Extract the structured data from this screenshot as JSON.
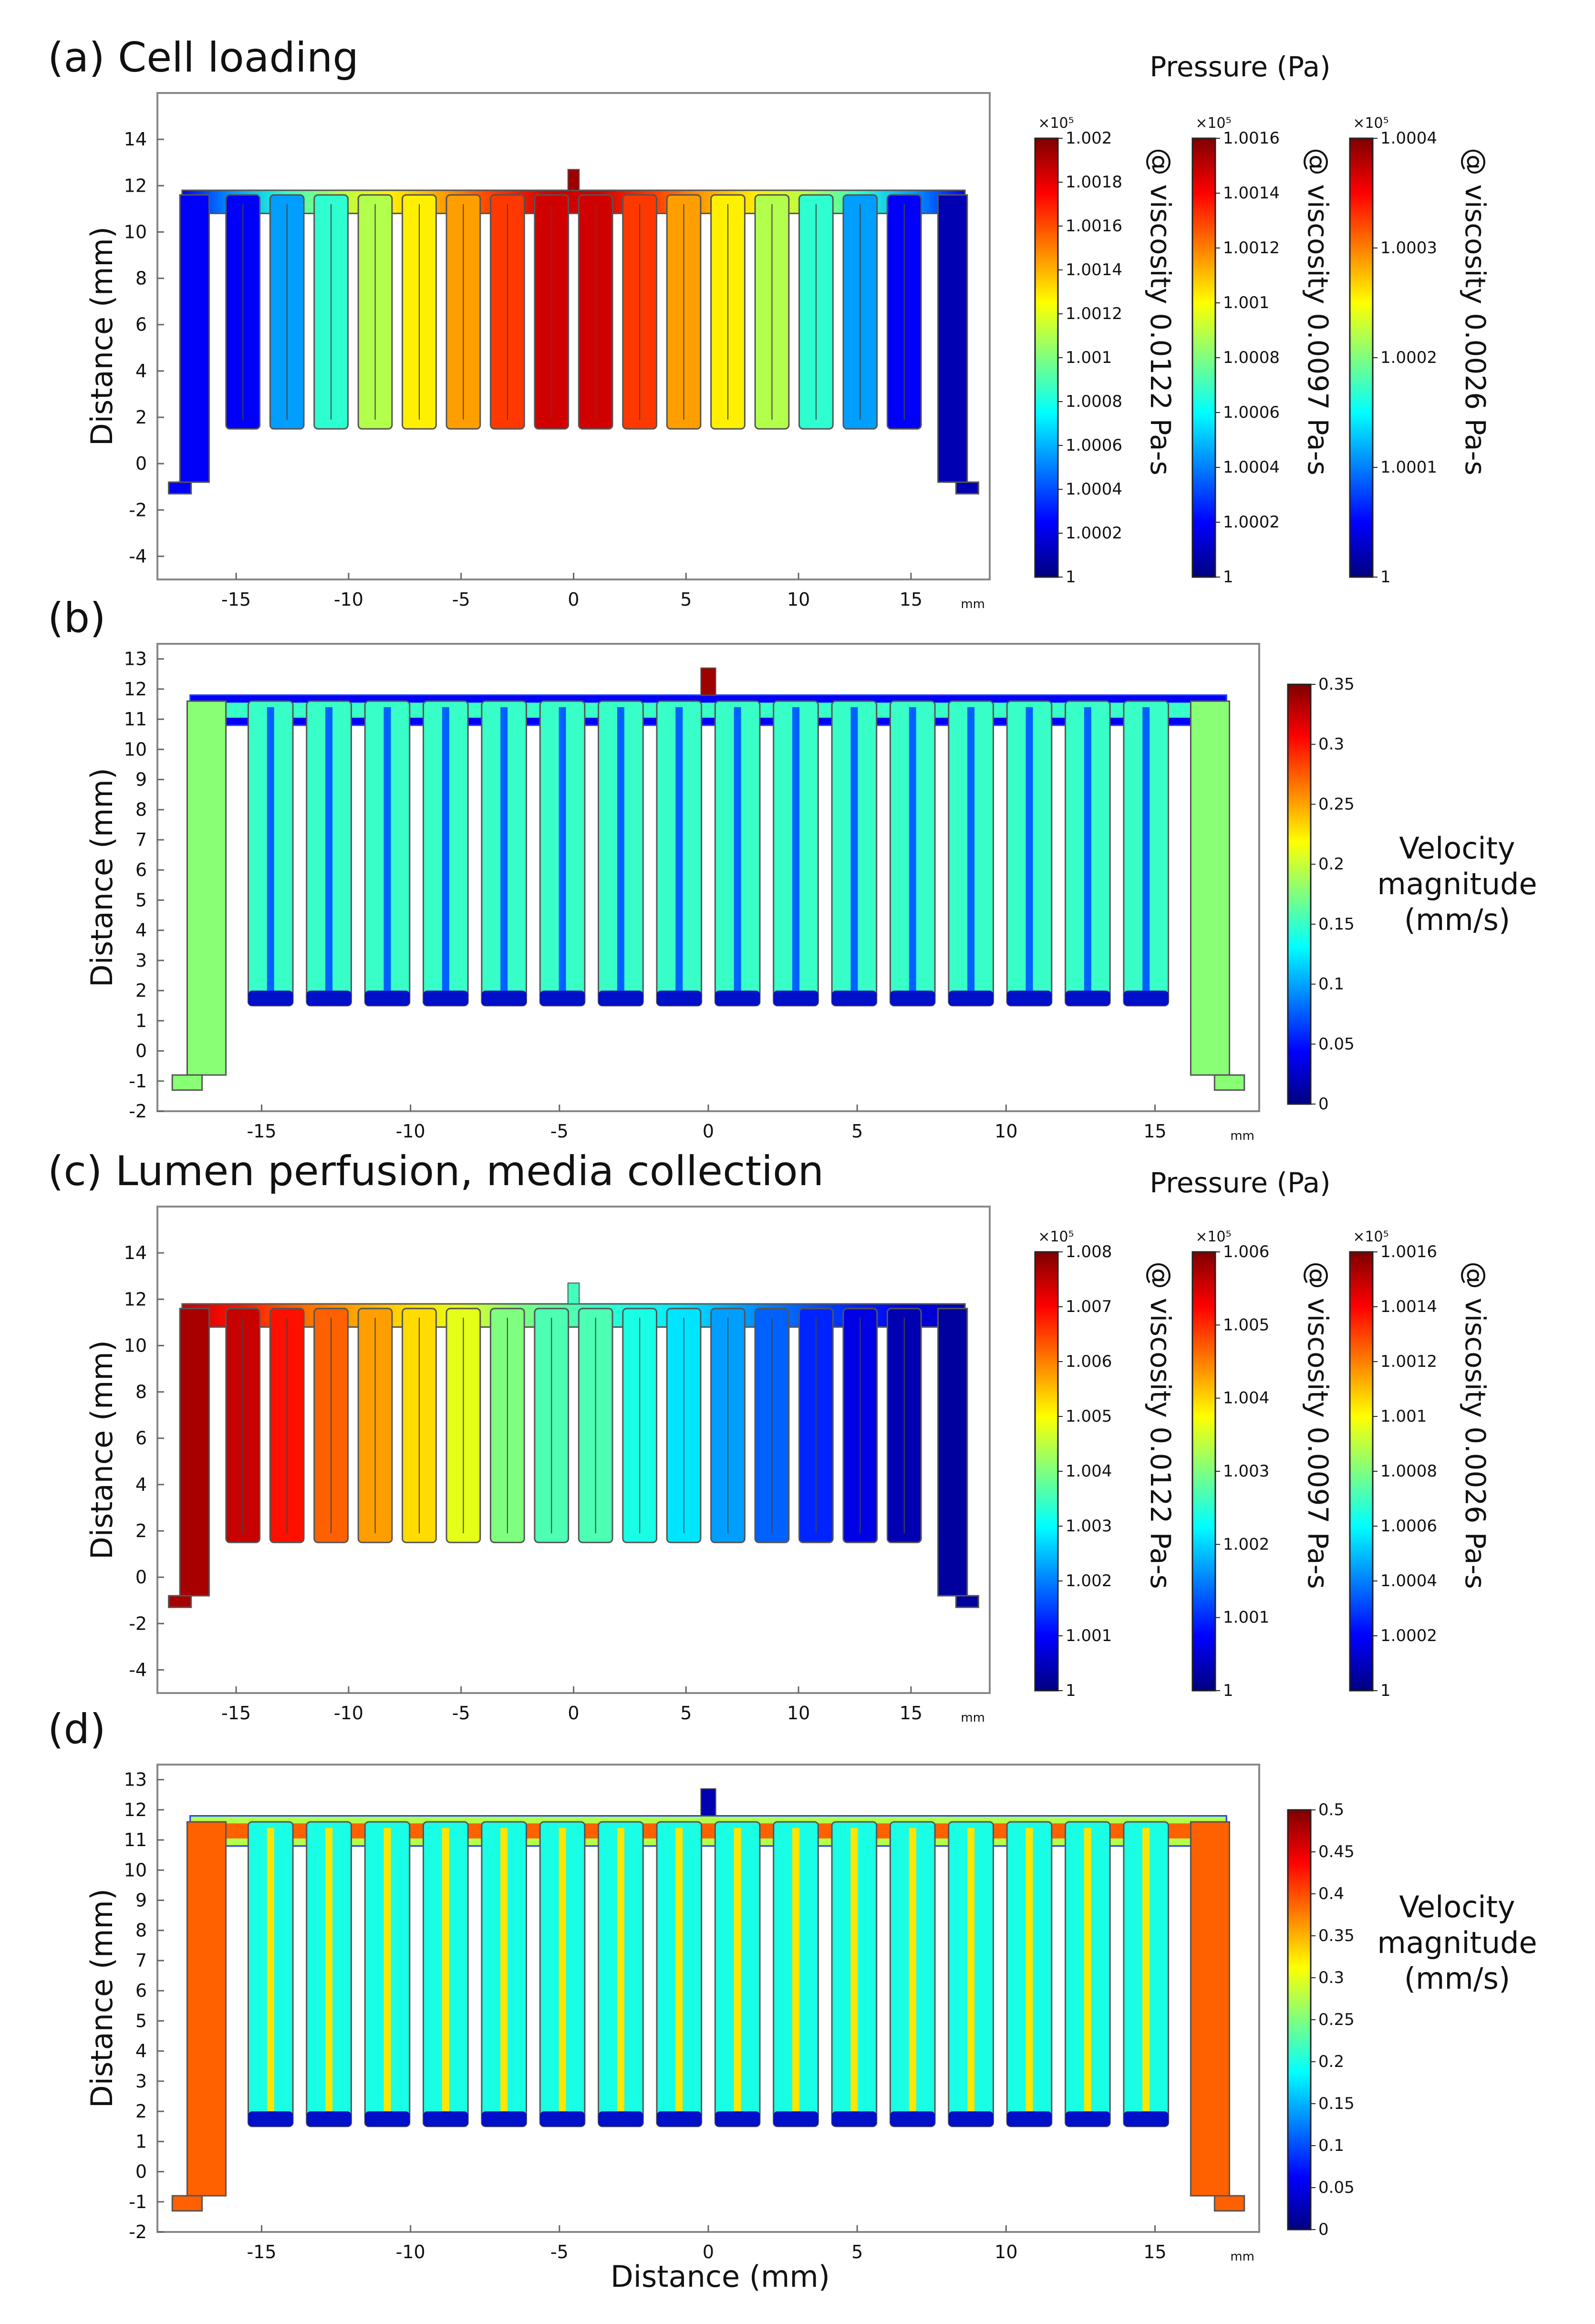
{
  "figure": {
    "xlabel_bottom": "Distance (mm)"
  },
  "palette": {
    "jet": [
      "#00007f",
      "#0000ff",
      "#007fff",
      "#00ffff",
      "#7fff7f",
      "#ffff00",
      "#ff7f00",
      "#ff0000",
      "#7f0000"
    ],
    "frame": "#888888",
    "background": "#ffffff",
    "outline": "#555555"
  },
  "panels": [
    {
      "id": "a",
      "header": "(a) Cell loading",
      "ylabel": "Distance (mm)",
      "x_unit": "mm",
      "x_ticks": [
        "-15",
        "-10",
        "-5",
        "0",
        "5",
        "10",
        "15"
      ],
      "y_ticks": [
        "-4",
        "-2",
        "0",
        "2",
        "4",
        "6",
        "8",
        "10",
        "12",
        "14"
      ],
      "xlim": [
        -18.5,
        18.5
      ],
      "ylim": [
        -5,
        16
      ],
      "field": "pressure",
      "finger_levels": [
        0.12,
        0.28,
        0.42,
        0.55,
        0.64,
        0.72,
        0.82,
        0.92,
        0.92,
        0.82,
        0.72,
        0.64,
        0.55,
        0.42,
        0.28,
        0.12
      ],
      "inlet_level": 0.97,
      "outlet_level": 0.05,
      "colorbar_group_label": "Pressure (Pa)",
      "colorbars": [
        {
          "multiplier": "×10⁵",
          "viscosity_label": "@ viscosity  0.0122 Pa-s",
          "ticks": [
            "1.002",
            "1.0018",
            "1.0016",
            "1.0014",
            "1.0012",
            "1.001",
            "1.0008",
            "1.0006",
            "1.0004",
            "1.0002",
            "1"
          ]
        },
        {
          "multiplier": "×10⁵",
          "viscosity_label": "@ viscosity 0.0097 Pa-s",
          "ticks": [
            "1.0016",
            "1.0014",
            "1.0012",
            "1.001",
            "1.0008",
            "1.0006",
            "1.0004",
            "1.0002",
            "1"
          ]
        },
        {
          "multiplier": "×10⁵",
          "viscosity_label": "@ viscosity 0.0026 Pa-s",
          "ticks": [
            "1.0004",
            "1.0003",
            "1.0002",
            "1.0001",
            "1"
          ]
        }
      ]
    },
    {
      "id": "b",
      "header": "(b)",
      "ylabel": "Distance (mm)",
      "x_unit": "mm",
      "x_ticks": [
        "-15",
        "-10",
        "-5",
        "0",
        "5",
        "10",
        "15"
      ],
      "y_ticks": [
        "-2",
        "-1",
        "0",
        "1",
        "2",
        "3",
        "4",
        "5",
        "6",
        "7",
        "8",
        "9",
        "10",
        "11",
        "12",
        "13"
      ],
      "xlim": [
        -18.5,
        18.5
      ],
      "ylim": [
        -2,
        13.5
      ],
      "field": "velocity",
      "core_level": 0.43,
      "wall_level": 0.12,
      "inlet_level": 0.97,
      "colorbar": {
        "ticks": [
          "0.35",
          "0.3",
          "0.25",
          "0.2",
          "0.15",
          "0.1",
          "0.05",
          "0"
        ],
        "label_lines": [
          "Velocity",
          "magnitude",
          "(mm/s)"
        ]
      }
    },
    {
      "id": "c",
      "header": "(c) Lumen perfusion, media collection",
      "ylabel": "Distance (mm)",
      "x_unit": "mm",
      "x_ticks": [
        "-15",
        "-10",
        "-5",
        "0",
        "5",
        "10",
        "15"
      ],
      "y_ticks": [
        "-4",
        "-2",
        "0",
        "2",
        "4",
        "6",
        "8",
        "10",
        "12",
        "14"
      ],
      "xlim": [
        -18.5,
        18.5
      ],
      "ylim": [
        -5,
        16
      ],
      "field": "pressure",
      "finger_levels": [
        0.93,
        0.86,
        0.78,
        0.72,
        0.66,
        0.6,
        0.5,
        0.45,
        0.4,
        0.35,
        0.28,
        0.22,
        0.16,
        0.1,
        0.05
      ],
      "inlet_level": 0.44,
      "outlet_level": 0.03,
      "left_level": 0.96,
      "colorbar_group_label": "Pressure (Pa)",
      "colorbars": [
        {
          "multiplier": "×10⁵",
          "viscosity_label": "@ viscosity  0.0122 Pa-s",
          "ticks": [
            "1.008",
            "1.007",
            "1.006",
            "1.005",
            "1.004",
            "1.003",
            "1.002",
            "1.001",
            "1"
          ]
        },
        {
          "multiplier": "×10⁵",
          "viscosity_label": "@ viscosity 0.0097 Pa-s",
          "ticks": [
            "1.006",
            "1.005",
            "1.004",
            "1.003",
            "1.002",
            "1.001",
            "1"
          ]
        },
        {
          "multiplier": "×10⁵",
          "viscosity_label": "@ viscosity 0.0026 Pa-s",
          "ticks": [
            "1.0016",
            "1.0014",
            "1.0012",
            "1.001",
            "1.0008",
            "1.0006",
            "1.0004",
            "1.0002",
            "1"
          ]
        }
      ]
    },
    {
      "id": "d",
      "header": "(d)",
      "ylabel": "Distance (mm)",
      "x_unit": "mm",
      "x_ticks": [
        "-15",
        "-10",
        "-5",
        "0",
        "5",
        "10",
        "15"
      ],
      "y_ticks": [
        "-2",
        "-1",
        "0",
        "1",
        "2",
        "3",
        "4",
        "5",
        "6",
        "7",
        "8",
        "9",
        "10",
        "11",
        "12",
        "13"
      ],
      "xlim": [
        -18.5,
        18.5
      ],
      "ylim": [
        -2,
        13.5
      ],
      "field": "velocity",
      "core_level": 0.4,
      "wall_level": 0.55,
      "rim_level": 0.78,
      "inlet_level": 0.05,
      "colorbar": {
        "ticks": [
          "0.5",
          "0.45",
          "0.4",
          "0.35",
          "0.3",
          "0.25",
          "0.2",
          "0.15",
          "0.1",
          "0.05",
          "0"
        ],
        "label_lines": [
          "Velocity",
          "magnitude",
          "(mm/s)"
        ]
      }
    }
  ],
  "chart_data": [
    {
      "type": "heatmap",
      "title": "(a) Cell loading",
      "ylabel": "Distance (mm)",
      "xlim": [
        -18.5,
        18.5
      ],
      "ylim": [
        -5,
        16
      ],
      "colorbar_label": "Pressure (Pa)",
      "colorbar_ranges_x1e5": [
        [
          1,
          1.002
        ],
        [
          1,
          1.0016
        ],
        [
          1,
          1.0004
        ]
      ],
      "viscosities": [
        "0.0122 Pa-s",
        "0.0097 Pa-s",
        "0.0026 Pa-s"
      ]
    },
    {
      "type": "heatmap",
      "title": "(b)",
      "ylabel": "Distance (mm)",
      "xlim": [
        -18.5,
        18.5
      ],
      "ylim": [
        -2,
        13.5
      ],
      "colorbar_label": "Velocity magnitude (mm/s)",
      "colorbar_range": [
        0,
        0.35
      ]
    },
    {
      "type": "heatmap",
      "title": "(c) Lumen perfusion, media collection",
      "ylabel": "Distance (mm)",
      "xlim": [
        -18.5,
        18.5
      ],
      "ylim": [
        -5,
        16
      ],
      "colorbar_label": "Pressure (Pa)",
      "colorbar_ranges_x1e5": [
        [
          1,
          1.008
        ],
        [
          1,
          1.006
        ],
        [
          1,
          1.0016
        ]
      ],
      "viscosities": [
        "0.0122 Pa-s",
        "0.0097 Pa-s",
        "0.0026 Pa-s"
      ]
    },
    {
      "type": "heatmap",
      "title": "(d)",
      "ylabel": "Distance (mm)",
      "xlabel": "Distance (mm)",
      "xlim": [
        -18.5,
        18.5
      ],
      "ylim": [
        -2,
        13.5
      ],
      "colorbar_label": "Velocity magnitude (mm/s)",
      "colorbar_range": [
        0,
        0.5
      ]
    }
  ]
}
